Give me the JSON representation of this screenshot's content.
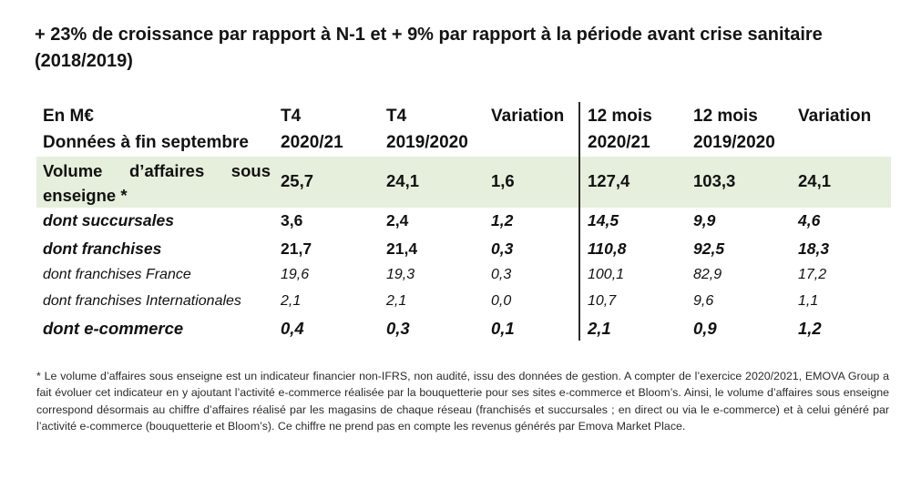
{
  "title": "+ 23% de croissance par rapport à N-1 et + 9% par rapport à la période avant crise sanitaire (2018/2019)",
  "table": {
    "headers": {
      "label_line1": "En M€",
      "label_line2": "Données à fin septembre",
      "t4_a_line1": "T4",
      "t4_a_line2": "2020/21",
      "t4_b_line1": "T4",
      "t4_b_line2": "2019/2020",
      "var1": "Variation",
      "m12_a_line1": "12 mois",
      "m12_a_line2": "2020/21",
      "m12_b_line1": "12 mois",
      "m12_b_line2": "2019/2020",
      "var2": "Variation"
    },
    "rows": [
      {
        "label": "Volume d’affaires sous enseigne *",
        "values": [
          "25,7",
          "24,1",
          "1,6",
          "127,4",
          "103,3",
          "24,1"
        ]
      },
      {
        "label": "dont succursales",
        "values": [
          "3,6",
          "2,4",
          "1,2",
          "14,5",
          "9,9",
          "4,6"
        ]
      },
      {
        "label": "dont franchises",
        "values": [
          "21,7",
          "21,4",
          "0,3",
          "110,8",
          "92,5",
          "18,3"
        ]
      },
      {
        "label": "dont franchises France",
        "values": [
          "19,6",
          "19,3",
          "0,3",
          "100,1",
          "82,9",
          "17,2"
        ]
      },
      {
        "label": "dont franchises Internationales",
        "values": [
          "2,1",
          "2,1",
          "0,0",
          "10,7",
          "9,6",
          "1,1"
        ]
      },
      {
        "label": "dont e-commerce",
        "values": [
          "0,4",
          "0,3",
          "0,1",
          "2,1",
          "0,9",
          "1,2"
        ]
      }
    ]
  },
  "footnote": "* Le volume d’affaires sous enseigne est un indicateur financier non-IFRS, non audité, issu des données de gestion. A compter de l’exercice 2020/2021, EMOVA Group a fait évoluer cet indicateur en y ajoutant l’activité e-commerce réalisée par la bouquetterie pour ses sites e-commerce et Bloom’s. Ainsi, le volume d’affaires sous enseigne correspond désormais au chiffre d’affaires réalisé par les magasins de chaque réseau (franchisés et succursales ; en direct ou via le e-commerce) et à celui généré par l’activité e-commerce (bouquetterie et Bloom’s). Ce chiffre ne prend pas en compte les revenus générés par Emova Market Place."
}
